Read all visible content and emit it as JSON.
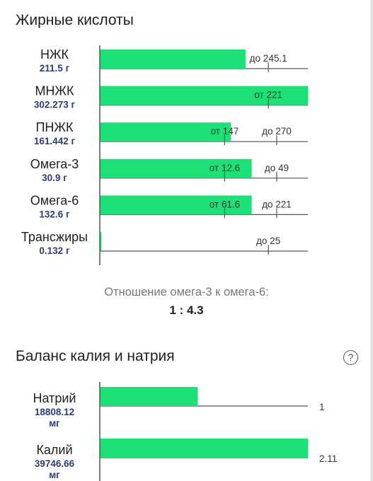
{
  "colors": {
    "bar": "#1de177",
    "axis": "#555555",
    "value_text": "#2b3d7a"
  },
  "fat_section": {
    "title": "Жирные кислоты"
  },
  "balance_section": {
    "title": "Баланс калия и натрия",
    "help_icon": "question-icon",
    "help_glyph": "?"
  },
  "ratio": {
    "label": "Отношение омега-3 к омега-6:",
    "value": "1 : 4.3"
  },
  "chart_data": [
    {
      "type": "bar",
      "orientation": "horizontal",
      "title": "Жирные кислоты",
      "xlim": [
        0,
        302.273
      ],
      "rows": [
        {
          "name": "НЖК",
          "value": 211.5,
          "value_label": "211.5 г",
          "fill": 0.7,
          "markers": [
            {
              "kind": "max",
              "label": "до 245.1",
              "pos": 0.81
            }
          ]
        },
        {
          "name": "МНЖК",
          "value": 302.273,
          "value_label": "302.273 г",
          "fill": 1.0,
          "markers": [
            {
              "kind": "min",
              "label": "от 221",
              "pos": 0.81
            }
          ]
        },
        {
          "name": "ПНЖК",
          "value": 161.442,
          "value_label": "161.442 г",
          "fill": 0.63,
          "markers": [
            {
              "kind": "min",
              "label": "от 147",
              "pos": 0.6
            },
            {
              "kind": "max",
              "label": "до 270",
              "pos": 0.85
            }
          ]
        },
        {
          "name": "Омега-3",
          "value": 30.9,
          "value_label": "30.9 г",
          "fill": 0.73,
          "markers": [
            {
              "kind": "min",
              "label": "от 12.6",
              "pos": 0.6
            },
            {
              "kind": "max",
              "label": "до 49",
              "pos": 0.85
            }
          ]
        },
        {
          "name": "Омега-6",
          "value": 132.6,
          "value_label": "132.6 г",
          "fill": 0.73,
          "markers": [
            {
              "kind": "min",
              "label": "от 61.6",
              "pos": 0.6
            },
            {
              "kind": "max",
              "label": "до 221",
              "pos": 0.85
            }
          ]
        },
        {
          "name": "Трансжиры",
          "value": 0.132,
          "value_label": "0.132 г",
          "fill": 0.006,
          "markers": [
            {
              "kind": "max",
              "label": "до 25",
              "pos": 0.81
            }
          ]
        }
      ]
    },
    {
      "type": "bar",
      "orientation": "horizontal",
      "title": "Баланс калия и натрия",
      "rows": [
        {
          "name": "Натрий",
          "value": 18808.12,
          "value_label": "18808.12",
          "unit": "мг",
          "fill": 0.47,
          "ratio_label": "1"
        },
        {
          "name": "Калий",
          "value": 39746.66,
          "value_label": "39746.66",
          "unit": "мг",
          "fill": 1.0,
          "ratio_label": "2.11"
        }
      ]
    }
  ]
}
